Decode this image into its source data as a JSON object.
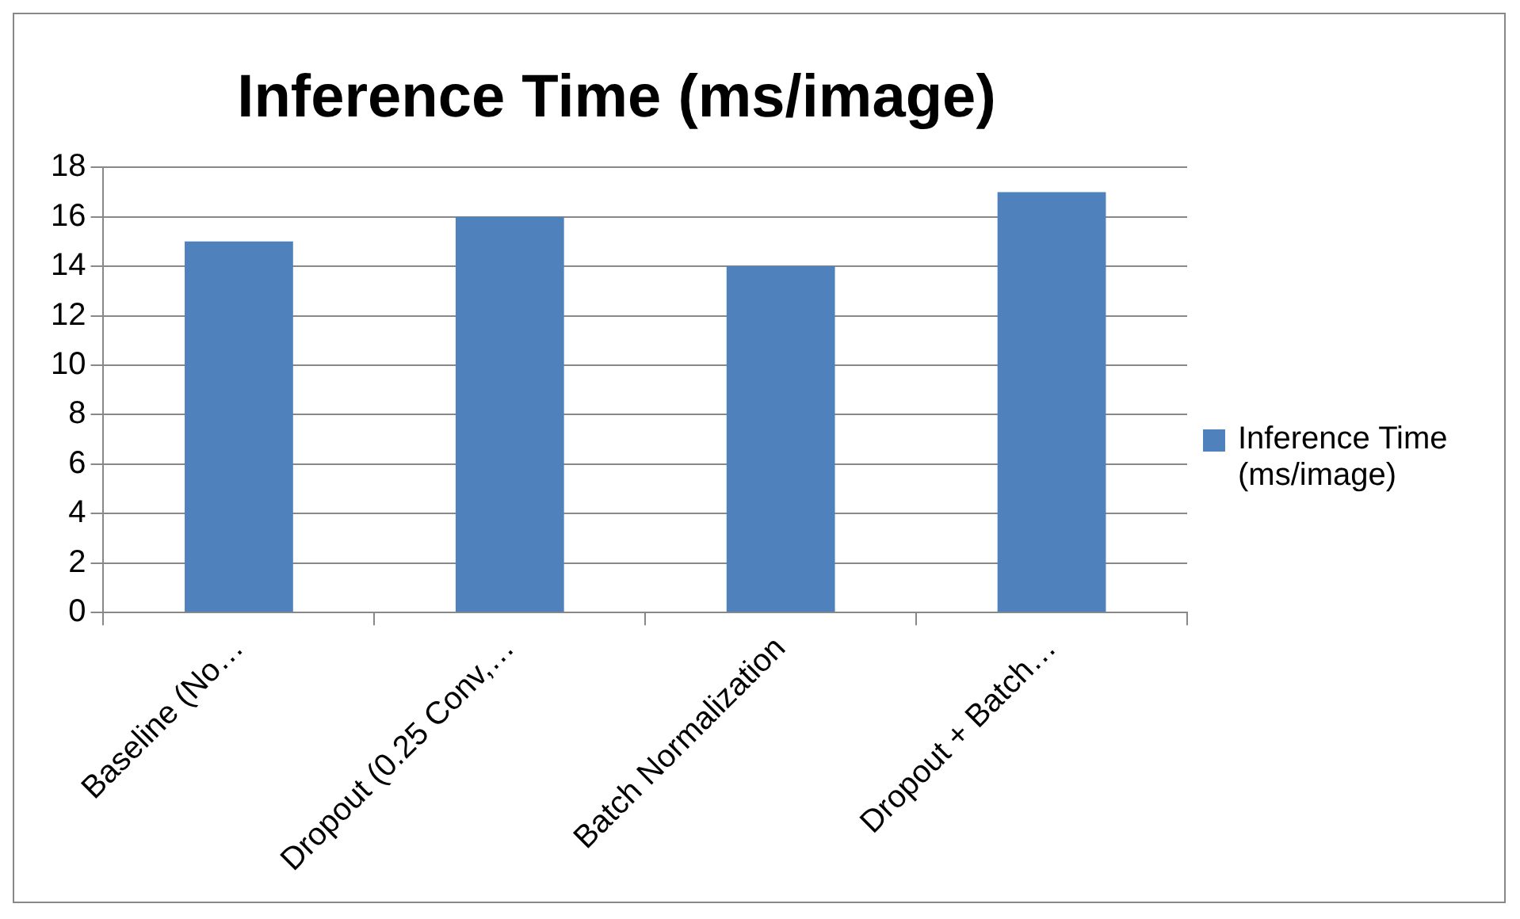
{
  "chart_data": {
    "type": "bar",
    "title": "Inference Time (ms/image)",
    "categories": [
      "Baseline (No…",
      "Dropout (0.25 Conv,…",
      "Batch Normalization",
      "Dropout + Batch…"
    ],
    "series": [
      {
        "name": "Inference Time (ms/image)",
        "color": "#4f81bd",
        "values": [
          15,
          16,
          14,
          17
        ]
      }
    ],
    "ylim": [
      0,
      18
    ],
    "yticks": [
      0,
      2,
      4,
      6,
      8,
      10,
      12,
      14,
      16,
      18
    ],
    "grid": "y",
    "legend": "right"
  }
}
